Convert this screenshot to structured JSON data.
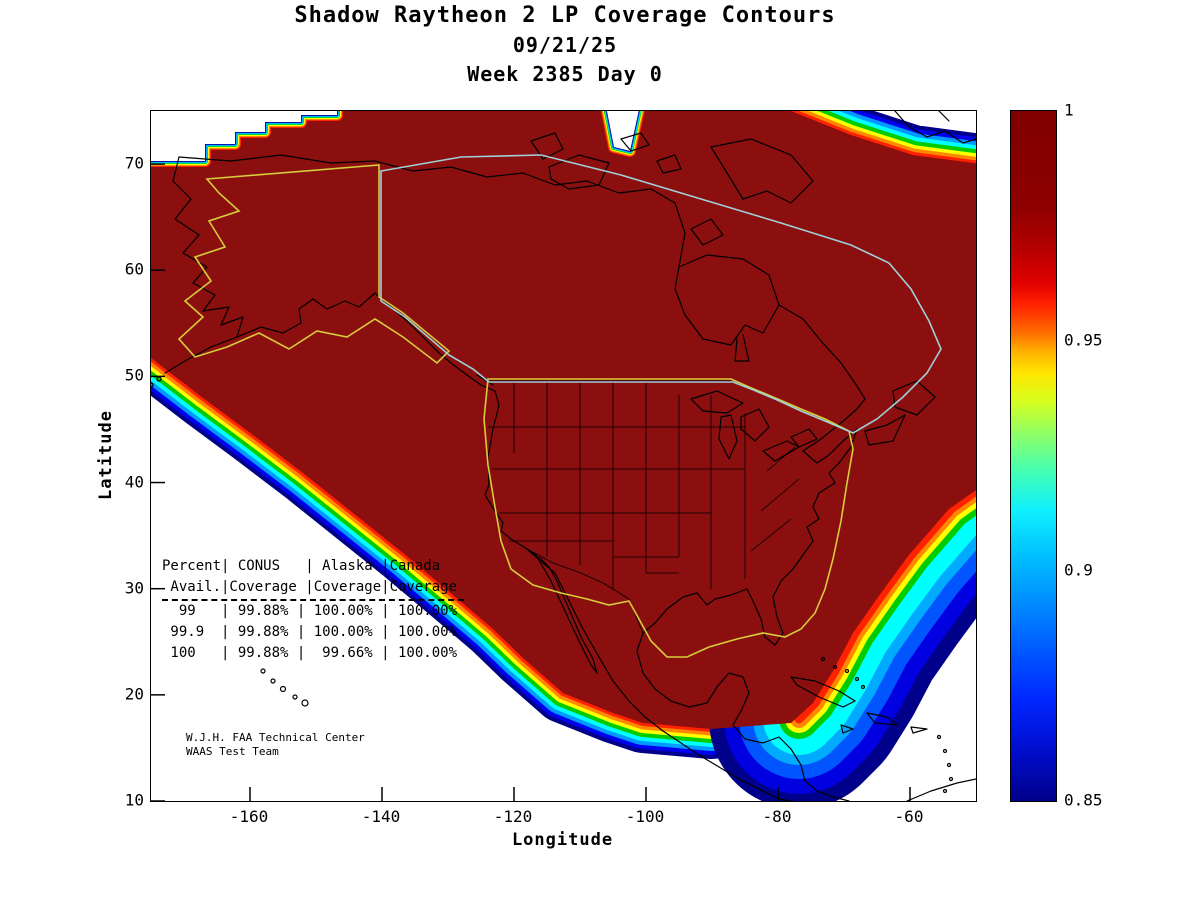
{
  "header": {
    "title_line1": "Shadow Raytheon 2 LP Coverage Contours",
    "title_line2": "09/21/25",
    "title_line3": "Week 2385 Day 0"
  },
  "axes": {
    "xlabel": "Longitude",
    "ylabel": "Latitude"
  },
  "coverage_table_display": {
    "header_lines": [
      "Percent| CONUS   | Alaska |Canada",
      " Avail.|Coverage |Coverage|Coverage"
    ],
    "data_lines": [
      "  99   | 99.88% | 100.00% | 100.00%",
      " 99.9  | 99.88% | 100.00% | 100.00%",
      " 100   | 99.88% |  99.66% | 100.00%"
    ]
  },
  "annotation": {
    "line1": "W.J.H. FAA Technical Center",
    "line2": "WAAS Test Team"
  },
  "chart_data": {
    "type": "contour",
    "title": "Shadow Raytheon 2 LP Coverage Contours",
    "subtitle": [
      "09/21/25",
      "Week 2385 Day 0"
    ],
    "xlabel": "Longitude",
    "ylabel": "Latitude",
    "xlim": [
      -175,
      -50
    ],
    "ylim": [
      10,
      75
    ],
    "x_ticks": [
      -160,
      -140,
      -120,
      -100,
      -80,
      -60
    ],
    "y_ticks": [
      70,
      60,
      50,
      40,
      30,
      20,
      10
    ],
    "grid": false,
    "colorbar": {
      "min": 0.85,
      "max": 1,
      "label_values": [
        1,
        0.95,
        0.9,
        0.85
      ],
      "colormap": "jet",
      "orientation": "vertical",
      "position": "right"
    },
    "contour_levels": [
      0.85,
      0.875,
      0.9,
      0.925,
      0.95,
      0.975,
      1.0
    ],
    "description": "LP availability coverage contours over North America; interior dark-red region has coverage ~1.0, rainbow fringe along Pacific and Caribbean/Atlantic edges decreases to 0.85",
    "coverage_table": {
      "columns": [
        "Percent Avail.",
        "CONUS Coverage",
        "Alaska Coverage",
        "Canada Coverage"
      ],
      "rows": [
        [
          "99",
          "99.88%",
          "100.00%",
          "100.00%"
        ],
        [
          "99.9",
          "99.88%",
          "100.00%",
          "100.00%"
        ],
        [
          "100",
          "99.88%",
          "99.66%",
          "100.00%"
        ]
      ]
    },
    "annotation": "W.J.H. FAA Technical Center / WAAS Test Team",
    "overlay_boundaries": {
      "conus_color": "#d6cd3a",
      "alaska_color": "#d6cd3a",
      "canada_color": "#9fd0d8"
    },
    "fill_color_max": "#8b0f0f"
  }
}
